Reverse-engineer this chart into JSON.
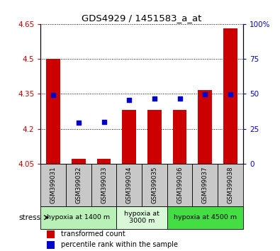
{
  "title": "GDS4929 / 1451583_a_at",
  "samples": [
    "GSM399031",
    "GSM399032",
    "GSM399033",
    "GSM399034",
    "GSM399035",
    "GSM399036",
    "GSM399037",
    "GSM399038"
  ],
  "red_values": [
    4.5,
    4.07,
    4.07,
    4.28,
    4.28,
    4.28,
    4.365,
    4.63
  ],
  "blue_values": [
    4.345,
    4.225,
    4.228,
    4.325,
    4.33,
    4.33,
    4.348,
    4.348
  ],
  "ylim_left": [
    4.05,
    4.65
  ],
  "ylim_right": [
    0,
    100
  ],
  "yticks_left": [
    4.05,
    4.2,
    4.35,
    4.5,
    4.65
  ],
  "yticks_right": [
    0,
    25,
    50,
    75,
    100
  ],
  "ytick_labels_left": [
    "4.05",
    "4.2",
    "4.35",
    "4.5",
    "4.65"
  ],
  "ytick_labels_right": [
    "0",
    "25",
    "50",
    "75",
    "100%"
  ],
  "bar_color": "#cc0000",
  "dot_color": "#0000cc",
  "bar_bottom": 4.05,
  "bar_width": 0.55,
  "dot_size": 22,
  "stress_label": "stress",
  "legend_red": "transformed count",
  "legend_blue": "percentile rank within the sample",
  "group_spans": [
    {
      "start": 0,
      "end": 2,
      "color": "#b8f0b8",
      "label": "hypoxia at 1400 m"
    },
    {
      "start": 3,
      "end": 4,
      "color": "#d8f8d8",
      "label": "hypoxia at\n3000 m"
    },
    {
      "start": 5,
      "end": 7,
      "color": "#44dd44",
      "label": "hypoxia at 4500 m"
    }
  ],
  "label_bg": "#c8c8c8",
  "fig_width": 3.95,
  "fig_height": 3.54
}
